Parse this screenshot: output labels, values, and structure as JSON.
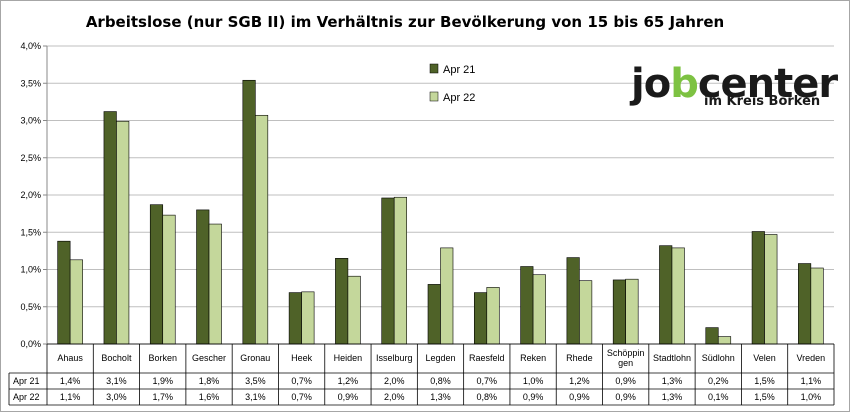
{
  "chart_data": {
    "type": "bar",
    "title": "Arbeitslose (nur SGB II) im Verhältnis zur Bevölkerung von 15 bis 65 Jahren",
    "categories": [
      "Ahaus",
      "Bocholt",
      "Borken",
      "Gescher",
      "Gronau",
      "Heek",
      "Heiden",
      "Isselburg",
      "Legden",
      "Raesfeld",
      "Reken",
      "Rhede",
      "Schöppingen",
      "Stadtlohn",
      "Südlohn",
      "Velen",
      "Vreden"
    ],
    "category_display": [
      [
        "Ahaus"
      ],
      [
        "Bocholt"
      ],
      [
        "Borken"
      ],
      [
        "Gescher"
      ],
      [
        "Gronau"
      ],
      [
        "Heek"
      ],
      [
        "Heiden"
      ],
      [
        "Isselburg"
      ],
      [
        "Legden"
      ],
      [
        "Raesfeld"
      ],
      [
        "Reken"
      ],
      [
        "Rhede"
      ],
      [
        "Schöppin",
        "gen"
      ],
      [
        "Stadtlohn"
      ],
      [
        "Südlohn"
      ],
      [
        "Velen"
      ],
      [
        "Vreden"
      ]
    ],
    "series": [
      {
        "name": "Apr 21",
        "color": "#4f6228",
        "values": [
          1.38,
          3.12,
          1.87,
          1.8,
          3.54,
          0.69,
          1.15,
          1.96,
          0.8,
          0.69,
          1.04,
          1.16,
          0.86,
          1.32,
          0.22,
          1.51,
          1.08
        ],
        "labels": [
          "1,4%",
          "3,1%",
          "1,9%",
          "1,8%",
          "3,5%",
          "0,7%",
          "1,2%",
          "2,0%",
          "0,8%",
          "0,7%",
          "1,0%",
          "1,2%",
          "0,9%",
          "1,3%",
          "0,2%",
          "1,5%",
          "1,1%"
        ]
      },
      {
        "name": "Apr 22",
        "color": "#c4d79b",
        "values": [
          1.13,
          2.99,
          1.73,
          1.61,
          3.07,
          0.7,
          0.91,
          1.97,
          1.29,
          0.76,
          0.93,
          0.85,
          0.87,
          1.29,
          0.1,
          1.47,
          1.02
        ],
        "labels": [
          "1,1%",
          "3,0%",
          "1,7%",
          "1,6%",
          "3,1%",
          "0,7%",
          "0,9%",
          "2,0%",
          "1,3%",
          "0,8%",
          "0,9%",
          "0,9%",
          "0,9%",
          "1,3%",
          "0,1%",
          "1,5%",
          "1,0%"
        ]
      }
    ],
    "ylim": [
      0,
      4.0
    ],
    "y_ticks": [
      "0,0%",
      "0,5%",
      "1,0%",
      "1,5%",
      "2,0%",
      "2,5%",
      "3,0%",
      "3,5%",
      "4,0%"
    ],
    "grid": true,
    "legend_position": "top-center",
    "data_table": true
  },
  "logo": {
    "text_a": "jo",
    "text_b": "b",
    "text_c": "center",
    "subtitle": "im Kreis Borken",
    "accent_color": "#7dc242"
  }
}
